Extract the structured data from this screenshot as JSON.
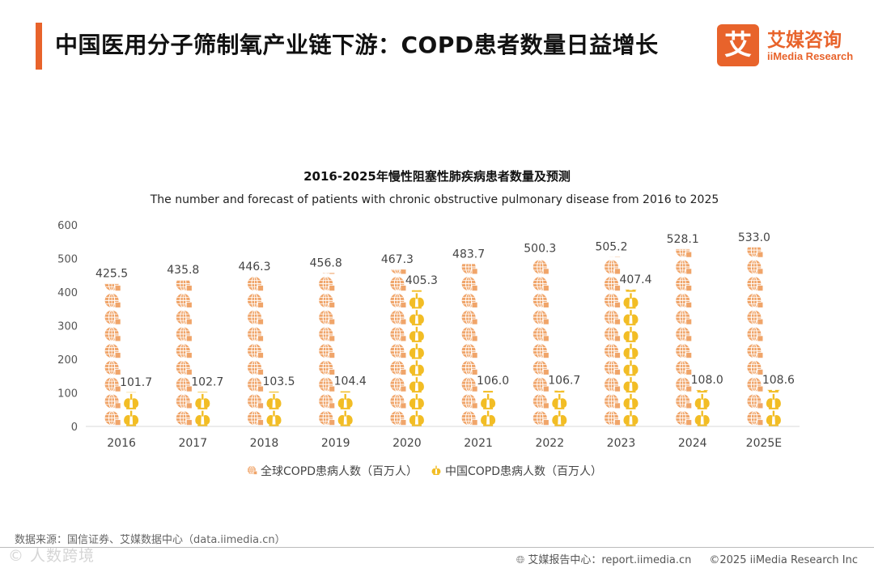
{
  "header": {
    "title": "中国医用分子筛制氧产业链下游：COPD患者数量日益增长",
    "logo_mark": "艾",
    "logo_cn": "艾媒咨询",
    "logo_en": "iiMedia Research"
  },
  "colors": {
    "accent": "#e8632b",
    "global_series": "#f0a56a",
    "china_series": "#f2bd25"
  },
  "chart_data": {
    "type": "bar",
    "title": "2016-2025年慢性阻塞性肺疾病患者数量及预测",
    "subtitle": "The number and forecast of patients with chronic obstructive pulmonary disease from 2016 to 2025",
    "categories": [
      "2016",
      "2017",
      "2018",
      "2019",
      "2020",
      "2021",
      "2022",
      "2023",
      "2024",
      "2025E"
    ],
    "series": [
      {
        "name": "全球COPD患病人数（百万人）",
        "icon": "globe-icon",
        "values": [
          425.5,
          435.8,
          446.3,
          456.8,
          467.3,
          483.7,
          500.3,
          505.2,
          528.1,
          533.0
        ],
        "labels": [
          "425.5",
          "435.8",
          "446.3",
          "456.8",
          "467.3",
          "483.7",
          "500.3",
          "505.2",
          "528.1",
          "533.0"
        ]
      },
      {
        "name": "中国COPD患病人数（百万人）",
        "icon": "lungs-icon",
        "values": [
          101.7,
          102.7,
          103.5,
          104.4,
          405.3,
          106.0,
          106.7,
          407.4,
          108.0,
          108.6
        ],
        "labels": [
          "101.7",
          "102.7",
          "103.5",
          "104.4",
          "405.3",
          "106.0",
          "106.7",
          "407.4",
          "108.0",
          "108.6"
        ]
      }
    ],
    "y_ticks": [
      "0",
      "100",
      "200",
      "300",
      "400",
      "500",
      "600"
    ],
    "ylim": [
      0,
      600
    ],
    "xlabel": "",
    "ylabel": "",
    "grid": false,
    "legend": "bottom"
  },
  "footer": {
    "source": "数据来源：国信证券、艾媒数据中心（data.iimedia.cn）",
    "watermark": "© 人数跨境",
    "report_center": "艾媒报告中心：report.iimedia.cn",
    "copyright": "©2025  iiMedia Research  Inc"
  }
}
